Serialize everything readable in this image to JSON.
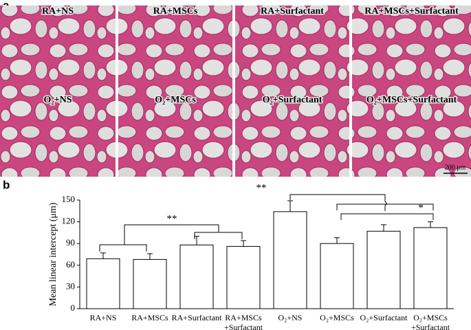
{
  "panel_a": {
    "label": "a",
    "images": [
      {
        "label": "RA+NS"
      },
      {
        "label": "RA+MSCs"
      },
      {
        "label": "RA+Surfactant"
      },
      {
        "label": "RA+MSCs+Surfactant"
      },
      {
        "label": "O₂+NS"
      },
      {
        "label": "O₂+MSCs"
      },
      {
        "label": "O₂+Surfactant"
      },
      {
        "label": "O₂+MSCs+Surfactant"
      }
    ],
    "scale_bar": "200 μm"
  },
  "panel_b": {
    "label": "b"
  },
  "chart_data": {
    "type": "bar",
    "ylabel": "Mean linear intercept (μm)",
    "categories": [
      "RA+NS",
      "RA+MSCs",
      "RA+Surfactant",
      "RA+MSCs\n+Surfactant",
      "O₂+NS",
      "O₂+MSCs",
      "O₂+Surfactant",
      "O₂+MSCs\n+Surfactant"
    ],
    "values": [
      69,
      68,
      88,
      86,
      134,
      90,
      107,
      112
    ],
    "errors": [
      8,
      8,
      12,
      8,
      15,
      8,
      9,
      8
    ],
    "color": "#ffffff",
    "ylim": [
      0,
      150
    ],
    "yticks": [
      0,
      30,
      60,
      90,
      120,
      150
    ],
    "annotations": [
      "**",
      "**",
      "*"
    ]
  }
}
